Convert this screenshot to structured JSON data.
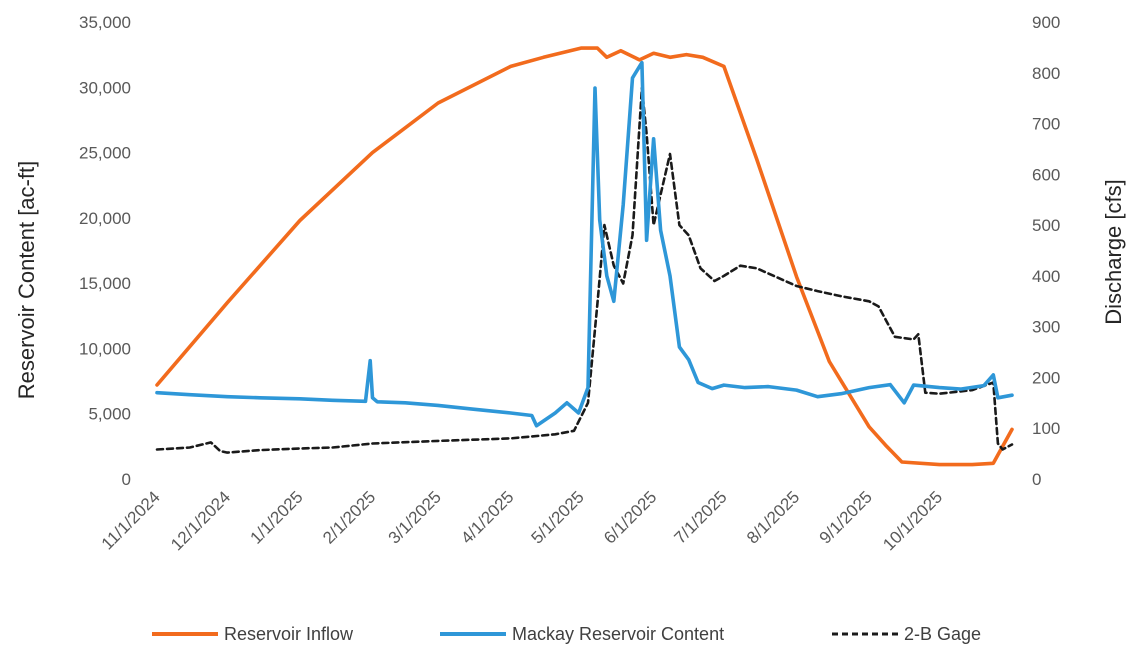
{
  "chart_data": {
    "type": "line",
    "title": "",
    "xlabel": "",
    "ylabel": "Reservoir Content [ac-ft]",
    "y2label": "Discharge [cfs]",
    "x_tick_labels": [
      "11/1/2024",
      "12/1/2024",
      "1/1/2025",
      "2/1/2025",
      "3/1/2025",
      "4/1/2025",
      "5/1/2025",
      "6/1/2025",
      "7/1/2025",
      "8/1/2025",
      "9/1/2025",
      "10/1/2025"
    ],
    "xlim": [
      "2024-11-01",
      "2025-11-01"
    ],
    "ylim": [
      0,
      35000
    ],
    "y_ticks": [
      0,
      5000,
      10000,
      15000,
      20000,
      25000,
      30000,
      35000
    ],
    "y_tick_labels": [
      "0",
      "5,000",
      "10,000",
      "15,000",
      "20,000",
      "25,000",
      "30,000",
      "35,000"
    ],
    "y2lim": [
      0,
      900
    ],
    "y2_ticks": [
      0,
      100,
      200,
      300,
      400,
      500,
      600,
      700,
      800,
      900
    ],
    "y2_tick_labels": [
      "0",
      "100",
      "200",
      "300",
      "400",
      "500",
      "600",
      "700",
      "800",
      "900"
    ],
    "grid": false,
    "legend_position": "bottom",
    "series": [
      {
        "name": "Reservoir Inflow",
        "axis": "left",
        "color": "#F26B1D",
        "style": "solid",
        "x": [
          "2024-11-01",
          "2024-12-01",
          "2025-01-01",
          "2025-02-01",
          "2025-03-01",
          "2025-04-01",
          "2025-04-15",
          "2025-05-01",
          "2025-05-08",
          "2025-05-12",
          "2025-05-18",
          "2025-05-26",
          "2025-06-01",
          "2025-06-08",
          "2025-06-15",
          "2025-06-22",
          "2025-07-01",
          "2025-07-15",
          "2025-08-01",
          "2025-08-15",
          "2025-09-01",
          "2025-09-08",
          "2025-09-15",
          "2025-10-01",
          "2025-10-15",
          "2025-10-24",
          "2025-11-01"
        ],
        "y": [
          7200,
          13500,
          19800,
          25000,
          28800,
          31600,
          32300,
          33000,
          33000,
          32300,
          32800,
          32100,
          32600,
          32300,
          32500,
          32300,
          31600,
          24500,
          15500,
          9000,
          4000,
          2600,
          1300,
          1100,
          1100,
          1200,
          3800
        ]
      },
      {
        "name": "Mackay Reservoir Content",
        "axis": "right",
        "color": "#2E97D8",
        "style": "solid",
        "x": [
          "2024-11-01",
          "2024-11-15",
          "2024-12-01",
          "2024-12-15",
          "2025-01-01",
          "2025-01-15",
          "2025-01-29",
          "2025-01-31",
          "2025-02-01",
          "2025-02-03",
          "2025-02-15",
          "2025-03-01",
          "2025-03-15",
          "2025-04-01",
          "2025-04-10",
          "2025-04-12",
          "2025-04-20",
          "2025-04-25",
          "2025-04-30",
          "2025-05-04",
          "2025-05-07",
          "2025-05-09",
          "2025-05-12",
          "2025-05-15",
          "2025-05-19",
          "2025-05-23",
          "2025-05-27",
          "2025-05-29",
          "2025-06-01",
          "2025-06-04",
          "2025-06-08",
          "2025-06-12",
          "2025-06-16",
          "2025-06-20",
          "2025-06-26",
          "2025-07-01",
          "2025-07-10",
          "2025-07-20",
          "2025-08-01",
          "2025-08-10",
          "2025-08-20",
          "2025-09-01",
          "2025-09-10",
          "2025-09-16",
          "2025-09-20",
          "2025-10-01",
          "2025-10-10",
          "2025-10-20",
          "2025-10-24",
          "2025-10-26",
          "2025-11-01"
        ],
        "y": [
          170,
          166,
          162,
          160,
          158,
          155,
          153,
          233,
          160,
          152,
          150,
          145,
          138,
          130,
          125,
          105,
          130,
          150,
          130,
          180,
          770,
          510,
          400,
          350,
          540,
          790,
          820,
          470,
          670,
          490,
          400,
          260,
          235,
          190,
          178,
          185,
          180,
          182,
          175,
          162,
          168,
          180,
          186,
          150,
          185,
          180,
          177,
          184,
          205,
          160,
          165
        ]
      },
      {
        "name": "2-B Gage",
        "axis": "right",
        "color": "#1A1A1A",
        "style": "dashed",
        "x": [
          "2024-11-01",
          "2024-11-15",
          "2024-11-24",
          "2024-11-28",
          "2024-12-01",
          "2024-12-15",
          "2025-01-01",
          "2025-01-15",
          "2025-02-01",
          "2025-03-01",
          "2025-04-01",
          "2025-04-20",
          "2025-04-28",
          "2025-05-04",
          "2025-05-08",
          "2025-05-11",
          "2025-05-15",
          "2025-05-19",
          "2025-05-23",
          "2025-05-27",
          "2025-05-29",
          "2025-06-01",
          "2025-06-04",
          "2025-06-08",
          "2025-06-12",
          "2025-06-16",
          "2025-06-21",
          "2025-06-27",
          "2025-07-01",
          "2025-07-08",
          "2025-07-15",
          "2025-08-01",
          "2025-08-10",
          "2025-08-20",
          "2025-09-01",
          "2025-09-05",
          "2025-09-12",
          "2025-09-20",
          "2025-09-22",
          "2025-09-25",
          "2025-10-01",
          "2025-10-15",
          "2025-10-24",
          "2025-10-26",
          "2025-10-28",
          "2025-11-01"
        ],
        "y": [
          58,
          62,
          72,
          55,
          52,
          57,
          60,
          62,
          70,
          75,
          80,
          88,
          95,
          150,
          345,
          500,
          420,
          385,
          480,
          770,
          680,
          500,
          560,
          640,
          500,
          480,
          415,
          390,
          400,
          420,
          415,
          380,
          370,
          360,
          350,
          340,
          280,
          275,
          285,
          170,
          168,
          175,
          190,
          70,
          58,
          68
        ]
      }
    ]
  }
}
